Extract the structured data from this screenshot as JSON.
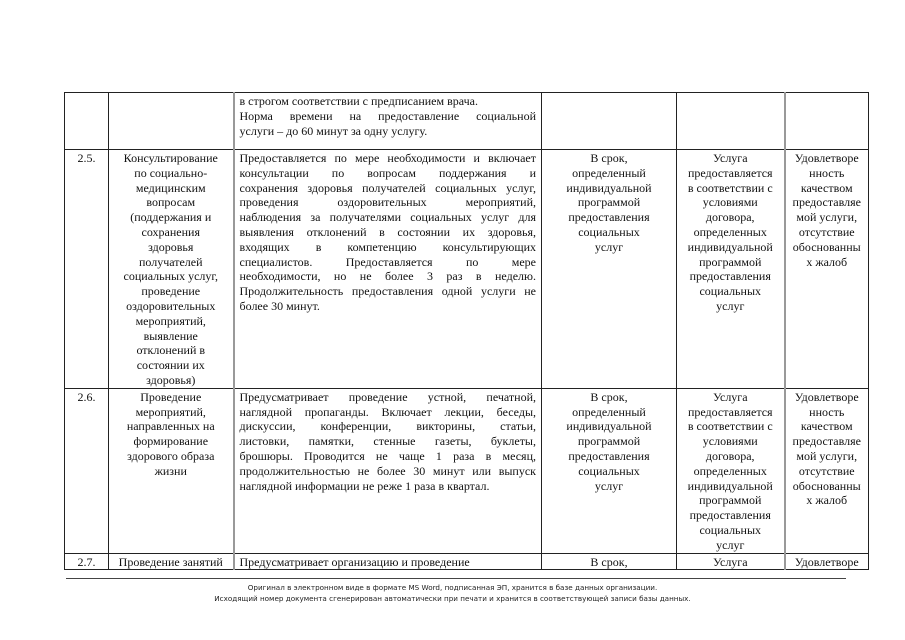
{
  "table": {
    "rows": [
      {
        "num": "",
        "name": [],
        "description": [
          "в строгом соответствии с предписанием врача.",
          "Норма времени на предоставление социальной",
          "услуги – до 60 минут за одну услугу."
        ],
        "term": [],
        "conditions": [],
        "quality": []
      },
      {
        "num": "2.5.",
        "name": [
          "Консультирование",
          "по социально-",
          "медицинским",
          "вопросам",
          "(поддержания и",
          "сохранения",
          "здоровья",
          "получателей",
          "социальных услуг,",
          "проведение",
          "оздоровительных",
          "мероприятий,",
          "выявление",
          "отклонений в",
          "состоянии их",
          "здоровья)"
        ],
        "description": [
          "Предоставляется по мере необходимости и включает",
          "консультации по вопросам поддержания и",
          "сохранения здоровья получателей социальных услуг,",
          "проведения оздоровительных мероприятий,",
          "наблюдения за получателями социальных услуг для",
          "выявления отклонений в состоянии их здоровья,",
          "входящих в компетенцию консультирующих",
          "специалистов. Предоставляется по мере",
          "необходимости, но не более 3 раз в неделю.",
          "Продолжительность предоставления одной услуги не",
          "более 30 минут."
        ],
        "term": [
          "В срок,",
          "определенный",
          "индивидуальной",
          "программой",
          "предоставления",
          "социальных",
          "услуг"
        ],
        "conditions": [
          "Услуга",
          "предоставляется",
          "в соответствии с",
          "условиями",
          "договора,",
          "определенных",
          "индивидуальной",
          "программой",
          "предоставления",
          "социальных",
          "услуг"
        ],
        "quality": [
          "Удовлетворе",
          "нность",
          "качеством",
          "предоставляе",
          "мой услуги,",
          "отсутствие",
          "обоснованны",
          "х жалоб"
        ]
      },
      {
        "num": "2.6.",
        "name": [
          "Проведение",
          "мероприятий,",
          "направленных на",
          "формирование",
          "здорового образа",
          "жизни"
        ],
        "description": [
          "Предусматривает проведение устной, печатной,",
          "наглядной пропаганды. Включает лекции, беседы,",
          "дискуссии, конференции, викторины, статьи,",
          "листовки, памятки, стенные газеты, буклеты,",
          "брошюры. Проводится не чаще 1 раза в месяц,",
          "продолжительностью не более 30 минут или выпуск",
          "наглядной информации не реже 1 раза в квартал."
        ],
        "term": [
          "В срок,",
          "определенный",
          "индивидуальной",
          "программой",
          "предоставления",
          "социальных",
          "услуг"
        ],
        "conditions": [
          "Услуга",
          "предоставляется",
          "в соответствии с",
          "условиями",
          "договора,",
          "определенных",
          "индивидуальной",
          "программой",
          "предоставления",
          "социальных",
          "услуг"
        ],
        "quality": [
          "Удовлетворе",
          "нность",
          "качеством",
          "предоставляе",
          "мой услуги,",
          "отсутствие",
          "обоснованны",
          "х жалоб"
        ]
      },
      {
        "num": "2.7.",
        "name": [
          "Проведение занятий"
        ],
        "description": [
          "Предусматривает организацию и проведение"
        ],
        "term": [
          "В срок,"
        ],
        "conditions": [
          "Услуга"
        ],
        "quality": [
          "Удовлетворе"
        ]
      }
    ]
  },
  "footer": {
    "line1": "Оригинал в электронном виде в формате MS Word, подписанная ЭП, хранится в базе данных организации.",
    "line2": "Исходящий номер документа сгенерирован автоматически при печати и хранится в соответствующей записи базы данных."
  }
}
